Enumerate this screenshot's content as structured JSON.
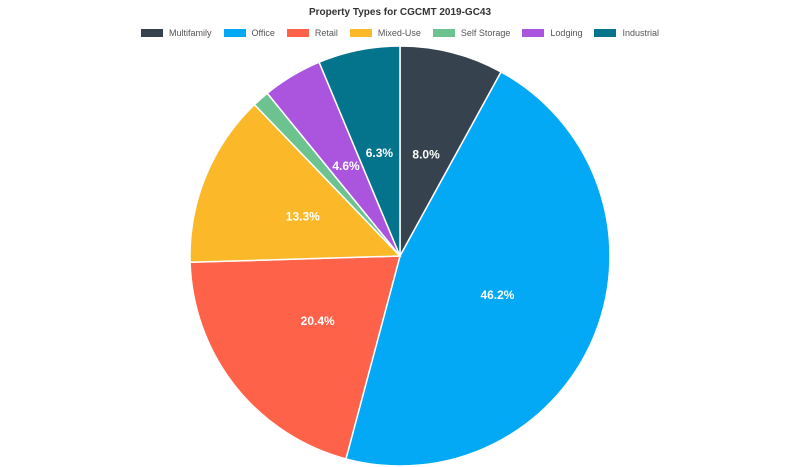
{
  "chart_data": {
    "type": "pie",
    "title": "Property Types for CGCMT 2019-GC43",
    "slices": [
      {
        "name": "Multifamily",
        "value": 8.0,
        "label": "8.0%",
        "color": "#36424d"
      },
      {
        "name": "Office",
        "value": 46.2,
        "label": "46.2%",
        "color": "#03a9f4"
      },
      {
        "name": "Retail",
        "value": 20.4,
        "label": "20.4%",
        "color": "#fe634a"
      },
      {
        "name": "Mixed-Use",
        "value": 13.3,
        "label": "13.3%",
        "color": "#fbb829"
      },
      {
        "name": "Self Storage",
        "value": 1.3,
        "label": "",
        "color": "#6dc38f"
      },
      {
        "name": "Lodging",
        "value": 4.6,
        "label": "4.6%",
        "color": "#ab54dd"
      },
      {
        "name": "Industrial",
        "value": 6.3,
        "label": "6.3%",
        "color": "#04748c"
      }
    ],
    "legend_position": "top"
  }
}
